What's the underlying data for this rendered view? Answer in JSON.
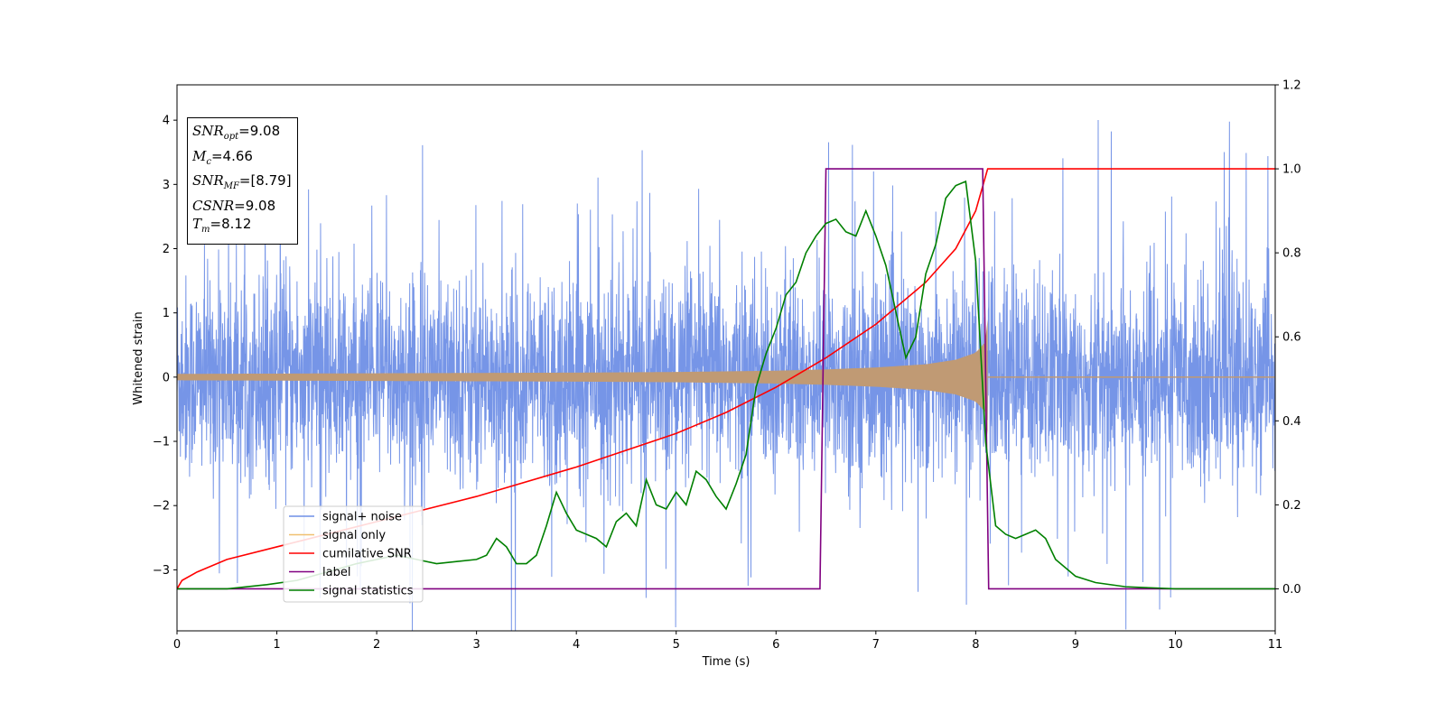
{
  "chart_data": {
    "type": "line",
    "xlabel": "Time (s)",
    "ylabel_left": "Whitened strain",
    "ylabel_right": "",
    "xlim": [
      0,
      11
    ],
    "ylim_left": [
      -3.95,
      4.55
    ],
    "ylim_right": [
      -0.1,
      1.2
    ],
    "x_ticks": [
      "0",
      "1",
      "2",
      "3",
      "4",
      "5",
      "6",
      "7",
      "8",
      "9",
      "10",
      "11"
    ],
    "y_ticks_left": [
      "−3",
      "−2",
      "−1",
      "0",
      "1",
      "2",
      "3",
      "4"
    ],
    "y_ticks_right": [
      "0.0",
      "0.2",
      "0.4",
      "0.6",
      "0.8",
      "1.0",
      "1.2"
    ],
    "grid": false,
    "legend_position": "lower-left",
    "annotations": [
      {
        "name": "SNR",
        "sub": "opt",
        "value": "=9.08"
      },
      {
        "name": "M",
        "sub": "c",
        "value": "=4.66"
      },
      {
        "name": "SNR",
        "sub": "MF",
        "value": "=[8.79]"
      },
      {
        "name": "CSNR",
        "sub": "",
        "value": "=9.08"
      },
      {
        "name": "T",
        "sub": "m",
        "value": "=8.12"
      }
    ],
    "series": [
      {
        "name": "signal+ noise",
        "color": "#6f8fe6",
        "axis": "left",
        "kind": "noise",
        "noise_std": 0.78,
        "t_end": 11
      },
      {
        "name": "signal only",
        "color": "#f0c070",
        "fill_color": "#c09a74",
        "axis": "left",
        "kind": "chirp_envelope",
        "t_merge": 8.12,
        "envelope": {
          "x": [
            0,
            2,
            4,
            5,
            6,
            6.5,
            7,
            7.5,
            7.8,
            8.0,
            8.1,
            8.12
          ],
          "y": [
            0.05,
            0.06,
            0.07,
            0.08,
            0.1,
            0.12,
            0.15,
            0.2,
            0.27,
            0.38,
            0.55,
            0.9
          ]
        }
      },
      {
        "name": "cumilative SNR",
        "color": "#ff0000",
        "axis": "right",
        "x": [
          0,
          0.05,
          0.2,
          0.5,
          1,
          2,
          3,
          4,
          5,
          5.5,
          6,
          6.5,
          7,
          7.5,
          7.8,
          8.0,
          8.12,
          8.13,
          11
        ],
        "y": [
          0.0,
          0.02,
          0.04,
          0.07,
          0.1,
          0.16,
          0.22,
          0.29,
          0.37,
          0.42,
          0.48,
          0.55,
          0.63,
          0.73,
          0.81,
          0.9,
          1.0,
          1.0,
          1.0
        ]
      },
      {
        "name": "label",
        "color": "#800080",
        "axis": "right",
        "x": [
          0,
          6.44,
          6.5,
          8.07,
          8.13,
          11
        ],
        "y": [
          0,
          0,
          1,
          1,
          0,
          0
        ]
      },
      {
        "name": "signal statistics",
        "color": "#008000",
        "axis": "right",
        "x": [
          0,
          0.5,
          0.9,
          1.2,
          1.5,
          1.8,
          2.0,
          2.2,
          2.4,
          2.6,
          2.8,
          3.0,
          3.1,
          3.2,
          3.3,
          3.4,
          3.5,
          3.6,
          3.7,
          3.8,
          3.9,
          4.0,
          4.1,
          4.2,
          4.3,
          4.4,
          4.5,
          4.6,
          4.7,
          4.8,
          4.9,
          5.0,
          5.1,
          5.2,
          5.3,
          5.4,
          5.5,
          5.6,
          5.7,
          5.8,
          5.9,
          6.0,
          6.1,
          6.2,
          6.3,
          6.4,
          6.5,
          6.6,
          6.7,
          6.8,
          6.9,
          7.0,
          7.1,
          7.2,
          7.3,
          7.4,
          7.5,
          7.6,
          7.7,
          7.8,
          7.9,
          8.0,
          8.1,
          8.2,
          8.3,
          8.4,
          8.5,
          8.6,
          8.7,
          8.8,
          9.0,
          9.2,
          9.5,
          10.0,
          11.0
        ],
        "y": [
          0.0,
          0.0,
          0.01,
          0.02,
          0.04,
          0.06,
          0.07,
          0.08,
          0.07,
          0.06,
          0.065,
          0.07,
          0.08,
          0.12,
          0.1,
          0.06,
          0.06,
          0.08,
          0.15,
          0.23,
          0.18,
          0.14,
          0.13,
          0.12,
          0.1,
          0.16,
          0.18,
          0.15,
          0.26,
          0.2,
          0.19,
          0.23,
          0.2,
          0.28,
          0.26,
          0.22,
          0.19,
          0.25,
          0.32,
          0.48,
          0.56,
          0.62,
          0.7,
          0.73,
          0.8,
          0.84,
          0.87,
          0.88,
          0.85,
          0.84,
          0.9,
          0.84,
          0.77,
          0.66,
          0.55,
          0.6,
          0.75,
          0.82,
          0.93,
          0.96,
          0.97,
          0.78,
          0.35,
          0.15,
          0.13,
          0.12,
          0.13,
          0.14,
          0.12,
          0.07,
          0.03,
          0.015,
          0.005,
          0.0,
          0.0
        ]
      }
    ]
  }
}
